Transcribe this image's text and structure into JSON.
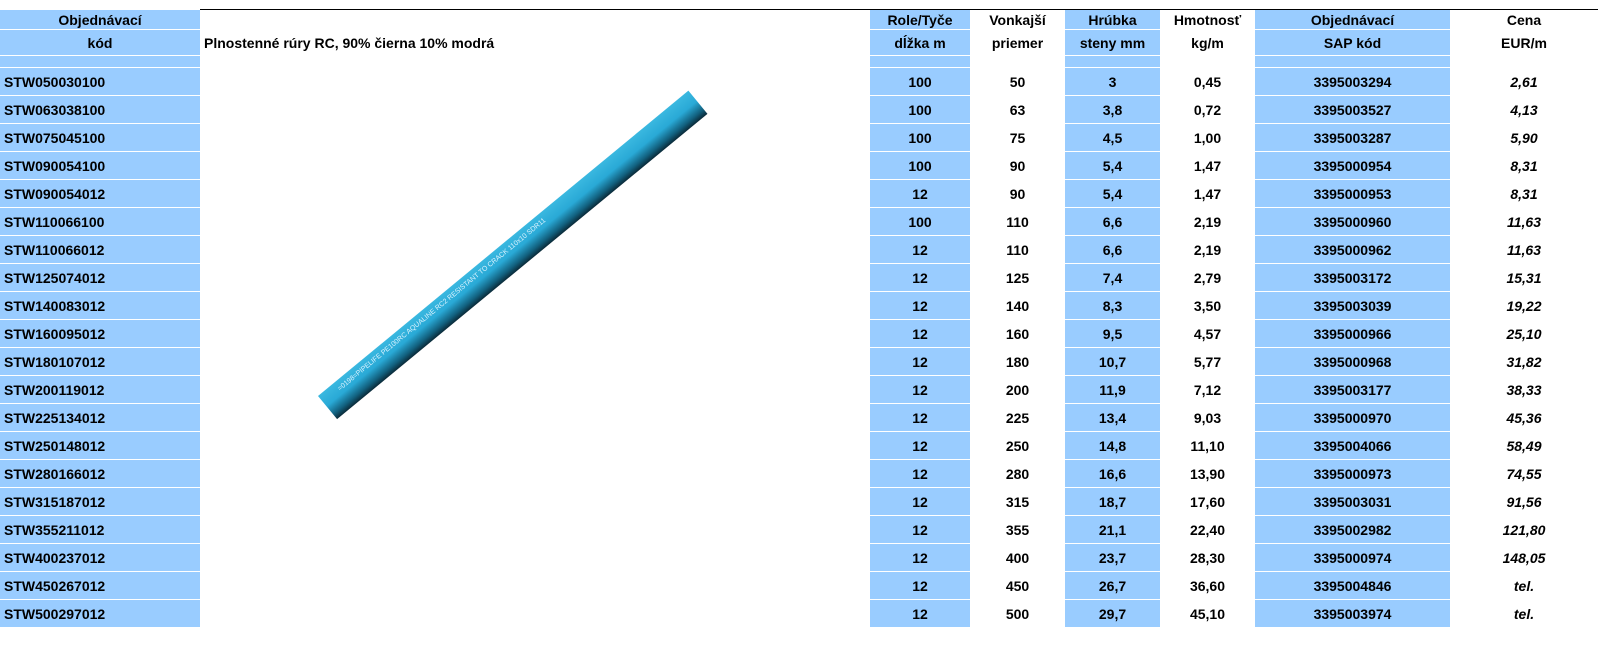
{
  "columns": [
    {
      "line1": "Objednávací",
      "line2": "kód"
    },
    {
      "line2": "Plnostenné rúry RC, 90% čierna 10% modrá"
    },
    {
      "line1": "Role/Tyče",
      "line2": "dĺžka m"
    },
    {
      "line1": "Vonkajší",
      "line2": "priemer"
    },
    {
      "line1": "Hrúbka",
      "line2": "steny mm"
    },
    {
      "line1": "Hmotnosť",
      "line2": "kg/m"
    },
    {
      "line1": "Objednávací",
      "line2": "SAP kód"
    },
    {
      "line1": "Cena",
      "line2": "EUR/m"
    }
  ],
  "image_text": "=0198=PIPELIFE PE100RC AQUALINE RC2 RESISTANT TO CRACK 110x10 SDR11",
  "rows": [
    [
      "STW050030100",
      "100",
      "50",
      "3",
      "0,45",
      "3395003294",
      "2,61"
    ],
    [
      "STW063038100",
      "100",
      "63",
      "3,8",
      "0,72",
      "3395003527",
      "4,13"
    ],
    [
      "STW075045100",
      "100",
      "75",
      "4,5",
      "1,00",
      "3395003287",
      "5,90"
    ],
    [
      "STW090054100",
      "100",
      "90",
      "5,4",
      "1,47",
      "3395000954",
      "8,31"
    ],
    [
      "STW090054012",
      "12",
      "90",
      "5,4",
      "1,47",
      "3395000953",
      "8,31"
    ],
    [
      "STW110066100",
      "100",
      "110",
      "6,6",
      "2,19",
      "3395000960",
      "11,63"
    ],
    [
      "STW110066012",
      "12",
      "110",
      "6,6",
      "2,19",
      "3395000962",
      "11,63"
    ],
    [
      "STW125074012",
      "12",
      "125",
      "7,4",
      "2,79",
      "3395003172",
      "15,31"
    ],
    [
      "STW140083012",
      "12",
      "140",
      "8,3",
      "3,50",
      "3395003039",
      "19,22"
    ],
    [
      "STW160095012",
      "12",
      "160",
      "9,5",
      "4,57",
      "3395000966",
      "25,10"
    ],
    [
      "STW180107012",
      "12",
      "180",
      "10,7",
      "5,77",
      "3395000968",
      "31,82"
    ],
    [
      "STW200119012",
      "12",
      "200",
      "11,9",
      "7,12",
      "3395003177",
      "38,33"
    ],
    [
      "STW225134012",
      "12",
      "225",
      "13,4",
      "9,03",
      "3395000970",
      "45,36"
    ],
    [
      "STW250148012",
      "12",
      "250",
      "14,8",
      "11,10",
      "3395004066",
      "58,49"
    ],
    [
      "STW280166012",
      "12",
      "280",
      "16,6",
      "13,90",
      "3395000973",
      "74,55"
    ],
    [
      "STW315187012",
      "12",
      "315",
      "18,7",
      "17,60",
      "3395003031",
      "91,56"
    ],
    [
      "STW355211012",
      "12",
      "355",
      "21,1",
      "22,40",
      "3395002982",
      "121,80"
    ],
    [
      "STW400237012",
      "12",
      "400",
      "23,7",
      "28,30",
      "3395000974",
      "148,05"
    ],
    [
      "STW450267012",
      "12",
      "450",
      "26,7",
      "36,60",
      "3395004846",
      "tel."
    ],
    [
      "STW500297012",
      "12",
      "500",
      "29,7",
      "45,10",
      "3395003974",
      "tel."
    ]
  ]
}
